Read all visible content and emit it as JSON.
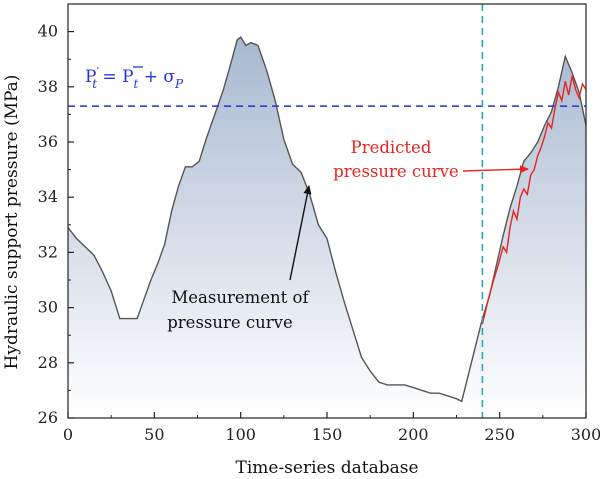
{
  "chart_data": {
    "type": "area",
    "xlabel": "Time-series database",
    "ylabel": "Hydraulic support pressure (MPa)",
    "xlim": [
      0,
      300
    ],
    "ylim": [
      26,
      41
    ],
    "x_ticks": [
      0,
      50,
      100,
      150,
      200,
      250,
      300
    ],
    "y_ticks": [
      26,
      28,
      30,
      32,
      34,
      36,
      38,
      40
    ],
    "grid": false,
    "series": [
      {
        "style": "area-line",
        "color": "#555555",
        "fill_top": "#a8b8d0",
        "fill_bottom": "#ffffff",
        "points": [
          [
            0,
            32.9
          ],
          [
            5,
            32.5
          ],
          [
            10,
            32.2
          ],
          [
            15,
            31.9
          ],
          [
            20,
            31.3
          ],
          [
            25,
            30.6
          ],
          [
            30,
            29.6
          ],
          [
            35,
            29.6
          ],
          [
            40,
            29.6
          ],
          [
            44,
            30.3
          ],
          [
            48,
            31.0
          ],
          [
            52,
            31.6
          ],
          [
            56,
            32.3
          ],
          [
            60,
            33.5
          ],
          [
            64,
            34.4
          ],
          [
            68,
            35.1
          ],
          [
            72,
            35.1
          ],
          [
            76,
            35.3
          ],
          [
            80,
            36.1
          ],
          [
            85,
            37.0
          ],
          [
            90,
            37.9
          ],
          [
            95,
            39.0
          ],
          [
            98,
            39.7
          ],
          [
            100,
            39.8
          ],
          [
            103,
            39.5
          ],
          [
            106,
            39.6
          ],
          [
            110,
            39.5
          ],
          [
            115,
            38.6
          ],
          [
            120,
            37.5
          ],
          [
            125,
            36.1
          ],
          [
            130,
            35.2
          ],
          [
            135,
            34.9
          ],
          [
            140,
            34.1
          ],
          [
            145,
            33.0
          ],
          [
            150,
            32.5
          ],
          [
            155,
            31.3
          ],
          [
            160,
            30.2
          ],
          [
            165,
            29.2
          ],
          [
            170,
            28.2
          ],
          [
            175,
            27.7
          ],
          [
            180,
            27.3
          ],
          [
            185,
            27.2
          ],
          [
            190,
            27.2
          ],
          [
            195,
            27.2
          ],
          [
            200,
            27.1
          ],
          [
            205,
            27.0
          ],
          [
            210,
            26.9
          ],
          [
            215,
            26.9
          ],
          [
            220,
            26.8
          ],
          [
            225,
            26.7
          ],
          [
            228,
            26.6
          ],
          [
            232,
            27.6
          ],
          [
            236,
            28.6
          ],
          [
            240,
            29.6
          ],
          [
            244,
            30.4
          ],
          [
            248,
            31.5
          ],
          [
            252,
            32.6
          ],
          [
            256,
            33.6
          ],
          [
            260,
            34.4
          ],
          [
            264,
            35.3
          ],
          [
            268,
            35.6
          ],
          [
            272,
            36.0
          ],
          [
            276,
            36.6
          ],
          [
            280,
            37.1
          ],
          [
            284,
            38.0
          ],
          [
            288,
            39.1
          ],
          [
            292,
            38.5
          ],
          [
            296,
            37.8
          ],
          [
            300,
            36.6
          ]
        ]
      },
      {
        "style": "line",
        "color": "#e8241f",
        "points": [
          [
            240,
            29.4
          ],
          [
            243,
            30.2
          ],
          [
            246,
            30.9
          ],
          [
            249,
            31.5
          ],
          [
            252,
            32.2
          ],
          [
            254,
            32.0
          ],
          [
            256,
            32.9
          ],
          [
            258,
            33.5
          ],
          [
            260,
            33.2
          ],
          [
            262,
            34.0
          ],
          [
            264,
            34.3
          ],
          [
            266,
            34.1
          ],
          [
            268,
            34.8
          ],
          [
            270,
            35.0
          ],
          [
            272,
            35.5
          ],
          [
            274,
            35.8
          ],
          [
            276,
            36.2
          ],
          [
            278,
            36.7
          ],
          [
            280,
            36.5
          ],
          [
            282,
            37.2
          ],
          [
            284,
            37.8
          ],
          [
            286,
            37.5
          ],
          [
            288,
            38.2
          ],
          [
            290,
            37.7
          ],
          [
            292,
            38.4
          ],
          [
            294,
            37.9
          ],
          [
            296,
            37.6
          ],
          [
            298,
            38.1
          ],
          [
            300,
            37.9
          ]
        ]
      }
    ],
    "threshold": {
      "y": 37.3,
      "color": "#2233dd",
      "style": "dashed"
    },
    "vline": {
      "x": 240,
      "color": "#2aa7b8",
      "style": "dashed"
    },
    "annotations": {
      "threshold_formula": {
        "base": "P",
        "prime": "′",
        "sub": "t",
        "eq": " = ",
        "bar": "P",
        "sub2": "t",
        "plus": " + σ",
        "sub3": "P"
      },
      "predicted_line1": "Predicted",
      "predicted_line2": "pressure curve",
      "measurement_line1": "Measurement of",
      "measurement_line2": "pressure curve"
    }
  }
}
